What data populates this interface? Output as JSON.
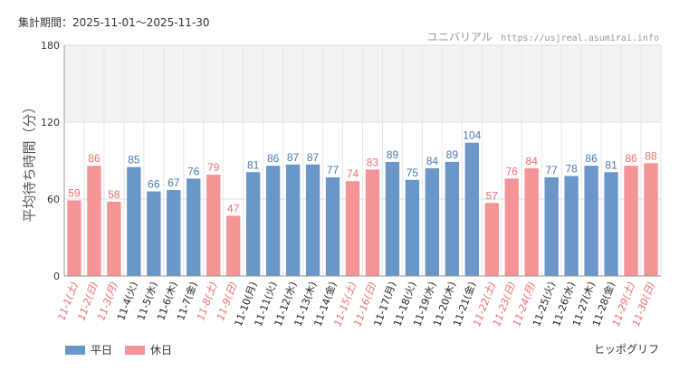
{
  "period": "集計期間：2025-11-01～2025-11-30",
  "site": {
    "name": "ユニバリアル",
    "url": "https://usjreal.asumirai.info"
  },
  "attribution": "ヒッポグリフ",
  "colors": {
    "weekday": "#6b96c8",
    "holiday": "#f59496",
    "weekday_text": "#4a78b0",
    "holiday_text": "#ef6b6e"
  },
  "chart_data": {
    "type": "bar",
    "title": "",
    "ylabel": "平均待ち時間（分）",
    "xlabel": "",
    "ylim": [
      0,
      180
    ],
    "yticks": [
      0,
      60,
      120,
      180
    ],
    "shaded_band": [
      120,
      180
    ],
    "legend": [
      {
        "key": "weekday",
        "label": "平日"
      },
      {
        "key": "holiday",
        "label": "休日"
      }
    ],
    "categories": [
      "11-1(土)",
      "11-2(日)",
      "11-3(月)",
      "11-4(火)",
      "11-5(水)",
      "11-6(木)",
      "11-7(金)",
      "11-8(土)",
      "11-9(日)",
      "11-10(月)",
      "11-11(火)",
      "11-12(水)",
      "11-13(木)",
      "11-14(金)",
      "11-15(土)",
      "11-16(日)",
      "11-17(月)",
      "11-18(火)",
      "11-19(水)",
      "11-20(木)",
      "11-21(金)",
      "11-22(土)",
      "11-23(日)",
      "11-24(月)",
      "11-25(火)",
      "11-26(水)",
      "11-27(木)",
      "11-28(金)",
      "11-29(土)",
      "11-30(日)"
    ],
    "values": [
      59,
      86,
      58,
      85,
      66,
      67,
      76,
      79,
      47,
      81,
      86,
      87,
      87,
      77,
      74,
      83,
      89,
      75,
      84,
      89,
      104,
      57,
      76,
      84,
      77,
      78,
      86,
      81,
      86,
      88
    ],
    "day_type": [
      "holiday",
      "holiday",
      "holiday",
      "weekday",
      "weekday",
      "weekday",
      "weekday",
      "holiday",
      "holiday",
      "weekday",
      "weekday",
      "weekday",
      "weekday",
      "weekday",
      "holiday",
      "holiday",
      "weekday",
      "weekday",
      "weekday",
      "weekday",
      "weekday",
      "holiday",
      "holiday",
      "holiday",
      "weekday",
      "weekday",
      "weekday",
      "weekday",
      "holiday",
      "holiday"
    ]
  }
}
